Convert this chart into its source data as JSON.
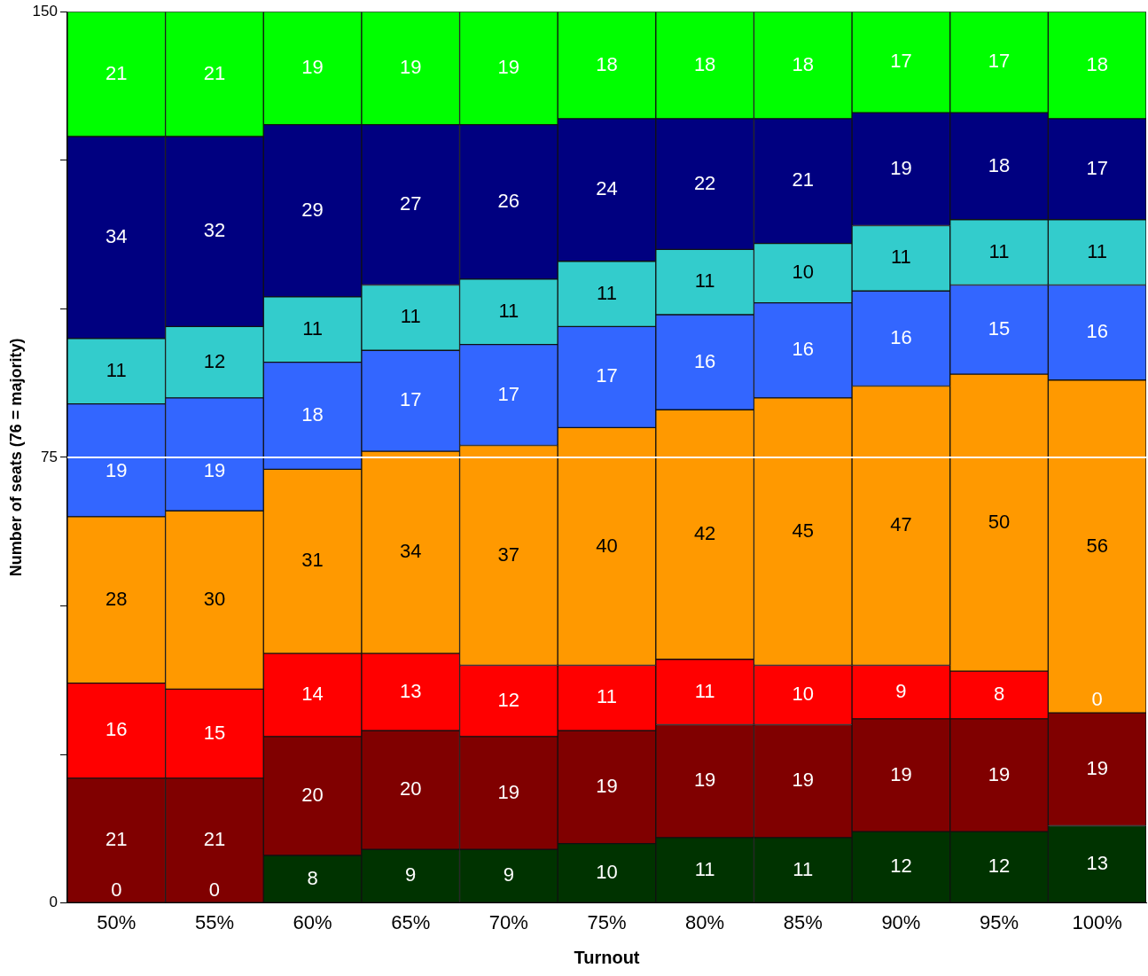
{
  "chart_data": {
    "type": "bar",
    "stacked": true,
    "xlabel": "Turnout",
    "ylabel": "Number of seats (76 = majority)",
    "categories": [
      "50%",
      "55%",
      "60%",
      "65%",
      "70%",
      "75%",
      "80%",
      "85%",
      "90%",
      "95%",
      "100%"
    ],
    "series": [
      {
        "color": "#003300",
        "values": [
          0,
          0,
          8,
          9,
          9,
          10,
          11,
          11,
          12,
          12,
          13
        ]
      },
      {
        "color": "#800000",
        "values": [
          21,
          21,
          20,
          20,
          19,
          19,
          19,
          19,
          19,
          19,
          19
        ]
      },
      {
        "color": "#ff0000",
        "values": [
          16,
          15,
          14,
          13,
          12,
          11,
          11,
          10,
          9,
          8,
          0
        ]
      },
      {
        "color": "#ff9900",
        "values": [
          28,
          30,
          31,
          34,
          37,
          40,
          42,
          45,
          47,
          50,
          56
        ]
      },
      {
        "color": "#3366ff",
        "values": [
          19,
          19,
          18,
          17,
          17,
          17,
          16,
          16,
          16,
          15,
          16
        ]
      },
      {
        "color": "#33cccc",
        "values": [
          11,
          12,
          11,
          11,
          11,
          11,
          11,
          10,
          11,
          11,
          11
        ]
      },
      {
        "color": "#000080",
        "values": [
          34,
          32,
          29,
          27,
          26,
          24,
          22,
          21,
          19,
          18,
          17
        ]
      },
      {
        "color": "#00ff00",
        "values": [
          21,
          21,
          19,
          19,
          19,
          18,
          18,
          18,
          17,
          17,
          18
        ]
      }
    ],
    "ylim": [
      0,
      150
    ],
    "yticks": [
      0,
      {
        "value": 25,
        "label": null
      },
      {
        "value": 50,
        "label": null
      },
      75,
      {
        "value": 100,
        "label": null
      },
      {
        "value": 125,
        "label": null
      },
      150
    ],
    "ref_lines": [
      {
        "axis": "y",
        "value": 75,
        "color": "#ffffff"
      }
    ],
    "data_labels": true,
    "grid": false,
    "legend": false
  }
}
